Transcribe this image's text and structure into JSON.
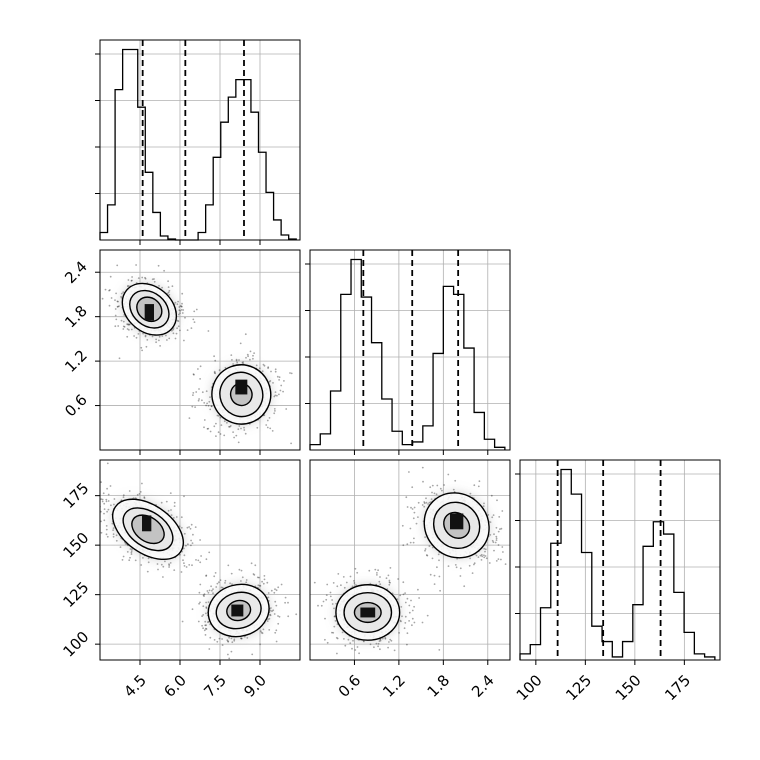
{
  "chart_data": {
    "type": "corner",
    "title": "",
    "grid": true,
    "parameters": [
      {
        "range": [
          3.0,
          10.5
        ],
        "ticks": [
          4.5,
          6.0,
          7.5,
          9.0
        ],
        "tick_labels": [
          "4.5",
          "6.0",
          "7.5",
          "9.0"
        ],
        "quantiles": [
          4.6,
          6.2,
          8.4
        ],
        "hist_bins": [
          0.15,
          0.7,
          3.0,
          3.8,
          3.8,
          2.65,
          1.35,
          0.55,
          0.08,
          0.02,
          0.0,
          0.0,
          0.0,
          0.15,
          0.7,
          1.65,
          2.35,
          2.85,
          3.2,
          3.2,
          2.55,
          1.75,
          0.95,
          0.4,
          0.1,
          0.02
        ]
      },
      {
        "range": [
          0.0,
          2.7
        ],
        "ticks": [
          0.6,
          1.2,
          1.8,
          2.4
        ],
        "tick_labels": [
          "0.6",
          "1.2",
          "1.8",
          "2.4"
        ],
        "quantiles": [
          0.72,
          1.38,
          2.0
        ],
        "hist_bins": [
          0.1,
          0.3,
          1.1,
          2.9,
          3.55,
          2.85,
          2.0,
          0.95,
          0.35,
          0.1,
          0.15,
          0.45,
          1.8,
          3.05,
          2.9,
          1.9,
          0.7,
          0.2,
          0.05
        ]
      },
      {
        "range": [
          92,
          193
        ],
        "ticks": [
          100,
          125,
          150,
          175
        ],
        "tick_labels": [
          "100",
          "125",
          "150",
          "175"
        ],
        "quantiles": [
          111,
          134,
          163
        ],
        "hist_bins": [
          0.1,
          0.25,
          0.85,
          1.9,
          3.1,
          2.7,
          1.75,
          0.55,
          0.3,
          0.05,
          0.3,
          0.9,
          1.85,
          2.25,
          2.05,
          1.1,
          0.45,
          0.1,
          0.05
        ]
      }
    ],
    "density_contours": [
      {
        "x_param": 0,
        "y_param": 1,
        "modes": [
          {
            "cx": 4.85,
            "cy": 1.9,
            "rx": [
              0.85,
              0.62,
              0.42
            ],
            "ry": [
              0.4,
              0.29,
              0.18
            ],
            "angle": 50,
            "peak": {
              "x": 4.85,
              "y": 1.86,
              "w": 0.35,
              "h": 0.22
            }
          },
          {
            "cx": 8.3,
            "cy": 0.75,
            "rx": [
              1.1,
              0.8,
              0.4
            ],
            "ry": [
              0.4,
              0.3,
              0.15
            ],
            "angle": 20,
            "peak": {
              "x": 8.3,
              "y": 0.85,
              "w": 0.45,
              "h": 0.2
            }
          }
        ]
      },
      {
        "x_param": 0,
        "y_param": 2,
        "modes": [
          {
            "cx": 4.8,
            "cy": 158,
            "rx": [
              0.9,
              0.65,
              0.45
            ],
            "ry": [
              20,
              14,
              9
            ],
            "angle": 55,
            "peak": {
              "x": 4.75,
              "y": 161,
              "w": 0.35,
              "h": 8
            }
          },
          {
            "cx": 8.2,
            "cy": 117,
            "rx": [
              1.15,
              0.85,
              0.45
            ],
            "ry": [
              13,
              9,
              5
            ],
            "angle": 15,
            "peak": {
              "x": 8.15,
              "y": 117,
              "w": 0.45,
              "h": 6
            }
          }
        ]
      },
      {
        "x_param": 1,
        "y_param": 2,
        "modes": [
          {
            "cx": 0.78,
            "cy": 116,
            "rx": [
              0.43,
              0.32,
              0.18
            ],
            "ry": [
              14,
              10,
              5
            ],
            "angle": 0,
            "peak": {
              "x": 0.78,
              "y": 116,
              "w": 0.2,
              "h": 5
            }
          },
          {
            "cx": 1.98,
            "cy": 160,
            "rx": [
              0.42,
              0.3,
              0.16
            ],
            "ry": [
              17,
              12,
              7
            ],
            "angle": 45,
            "peak": {
              "x": 1.98,
              "y": 162,
              "w": 0.18,
              "h": 8
            }
          }
        ]
      }
    ]
  }
}
